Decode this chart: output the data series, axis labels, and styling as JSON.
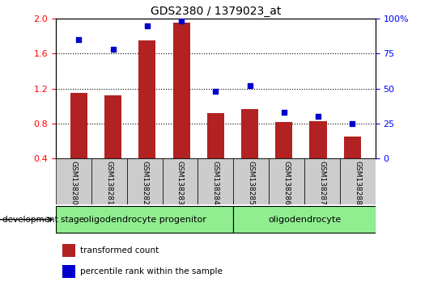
{
  "title": "GDS2380 / 1379023_at",
  "samples": [
    "GSM138280",
    "GSM138281",
    "GSM138282",
    "GSM138283",
    "GSM138284",
    "GSM138285",
    "GSM138286",
    "GSM138287",
    "GSM138288"
  ],
  "transformed_count": [
    1.15,
    1.12,
    1.75,
    1.95,
    0.92,
    0.97,
    0.82,
    0.83,
    0.65
  ],
  "percentile_rank": [
    85,
    78,
    95,
    98,
    48,
    52,
    33,
    30,
    25
  ],
  "ylim_left": [
    0.4,
    2.0
  ],
  "ylim_right": [
    0,
    100
  ],
  "yticks_left": [
    0.4,
    0.8,
    1.2,
    1.6,
    2.0
  ],
  "yticks_right": [
    0,
    25,
    50,
    75,
    100
  ],
  "ytick_labels_right": [
    "0",
    "25",
    "50",
    "75",
    "100%"
  ],
  "bar_color": "#B22222",
  "dot_color": "#0000CD",
  "tick_bg_color": "#CCCCCC",
  "groups": [
    {
      "label": "oligodendrocyte progenitor",
      "start": 0,
      "end": 4,
      "color": "#90EE90"
    },
    {
      "label": "oligodendrocyte",
      "start": 5,
      "end": 8,
      "color": "#90EE90"
    }
  ],
  "dev_stage_label": "development stage",
  "legend_items": [
    {
      "color": "#B22222",
      "label": "transformed count"
    },
    {
      "color": "#0000CD",
      "label": "percentile rank within the sample"
    }
  ],
  "n_samples": 9
}
